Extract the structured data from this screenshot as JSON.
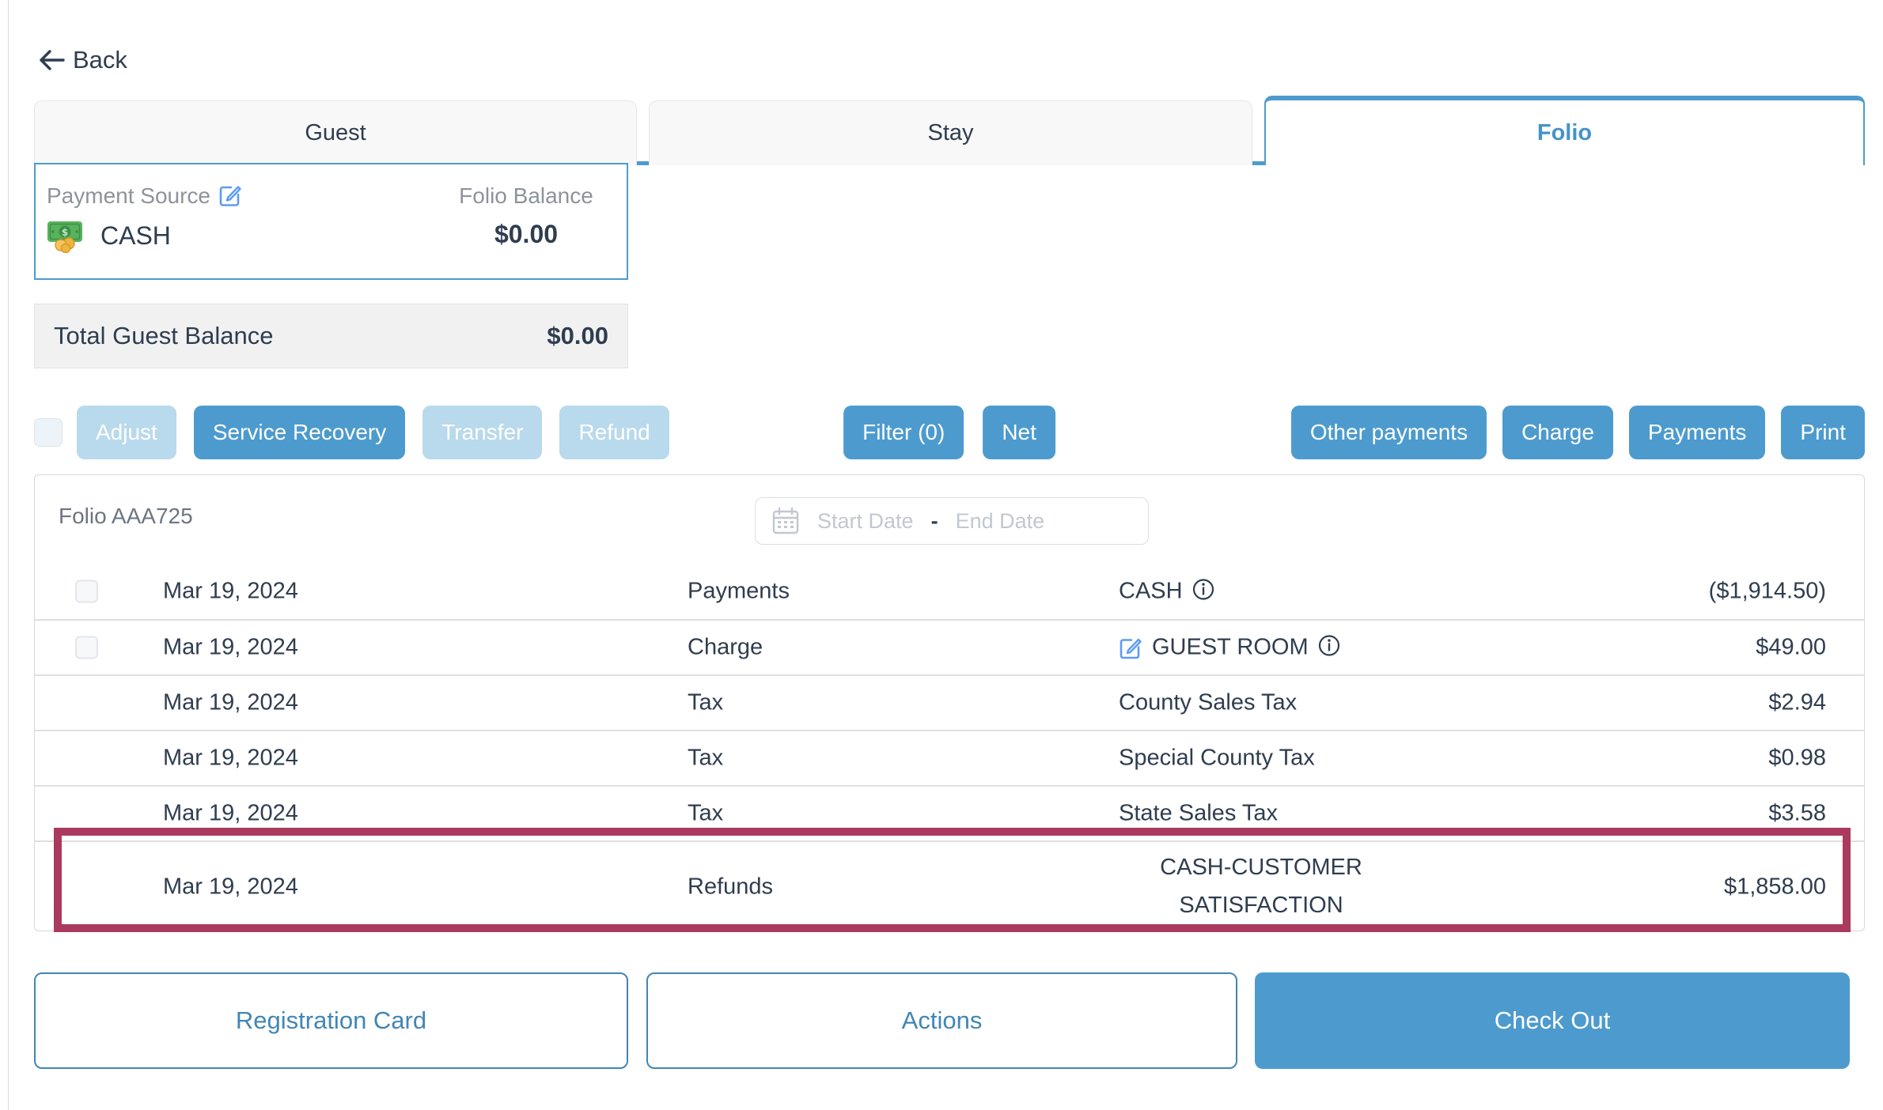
{
  "back": {
    "label": "Back"
  },
  "tabs": [
    {
      "label": "Guest",
      "active": false
    },
    {
      "label": "Stay",
      "active": false
    },
    {
      "label": "Folio",
      "active": true
    }
  ],
  "payment_source": {
    "label": "Payment Source",
    "value": "CASH"
  },
  "folio_balance": {
    "label": "Folio Balance",
    "value": "$0.00"
  },
  "total_guest_balance": {
    "label": "Total Guest Balance",
    "value": "$0.00"
  },
  "toolbar": {
    "left_buttons": [
      {
        "label": "Adjust",
        "enabled": false
      },
      {
        "label": "Service Recovery",
        "enabled": true
      },
      {
        "label": "Transfer",
        "enabled": false
      },
      {
        "label": "Refund",
        "enabled": false
      }
    ],
    "middle_buttons": [
      {
        "label": "Filter (0)",
        "enabled": true
      },
      {
        "label": "Net",
        "enabled": true
      }
    ],
    "right_buttons": [
      {
        "label": "Other payments",
        "enabled": true
      },
      {
        "label": "Charge",
        "enabled": true
      },
      {
        "label": "Payments",
        "enabled": true
      },
      {
        "label": "Print",
        "enabled": true
      }
    ]
  },
  "folio": {
    "title": "Folio AAA725",
    "date_filter": {
      "start_placeholder": "Start Date",
      "separator": "-",
      "end_placeholder": "End Date"
    }
  },
  "transactions": [
    {
      "date": "Mar 19, 2024",
      "type": "Payments",
      "description": "CASH",
      "amount": "($1,914.50)",
      "checkbox": true,
      "info": true,
      "editable": false,
      "highlighted": false
    },
    {
      "date": "Mar 19, 2024",
      "type": "Charge",
      "description": "GUEST ROOM",
      "amount": "$49.00",
      "checkbox": true,
      "info": true,
      "editable": true,
      "highlighted": false
    },
    {
      "date": "Mar 19, 2024",
      "type": "Tax",
      "description": "County Sales Tax",
      "amount": "$2.94",
      "checkbox": false,
      "info": false,
      "editable": false,
      "highlighted": false
    },
    {
      "date": "Mar 19, 2024",
      "type": "Tax",
      "description": "Special County Tax",
      "amount": "$0.98",
      "checkbox": false,
      "info": false,
      "editable": false,
      "highlighted": false
    },
    {
      "date": "Mar 19, 2024",
      "type": "Tax",
      "description": "State Sales Tax",
      "amount": "$3.58",
      "checkbox": false,
      "info": false,
      "editable": false,
      "highlighted": false
    },
    {
      "date": "Mar 19, 2024",
      "type": "Refunds",
      "description": "CASH-CUSTOMER SATISFACTION",
      "amount": "$1,858.00",
      "checkbox": false,
      "info": false,
      "editable": false,
      "highlighted": true
    }
  ],
  "footer": {
    "registration_card": "Registration Card",
    "actions": "Actions",
    "check_out": "Check Out"
  },
  "colors": {
    "accent_blue": "#4d9bce",
    "disabled_blue": "#b9d9ec",
    "outline_blue": "#4186b5",
    "highlight_maroon": "#ab3a5f",
    "dark_text": "#2f3d4f"
  }
}
